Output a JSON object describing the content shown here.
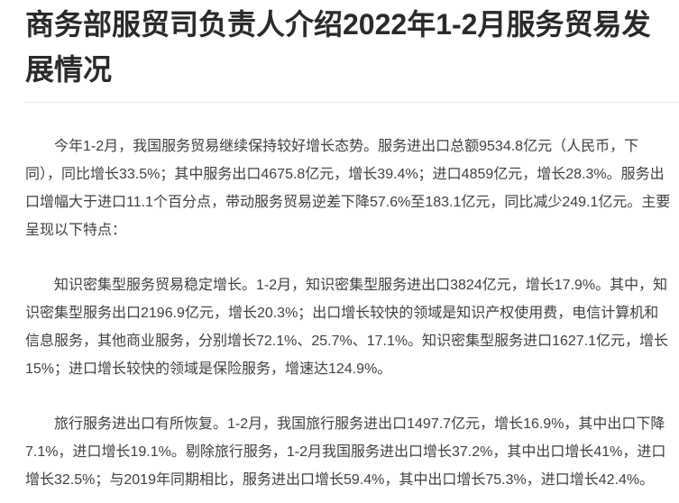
{
  "article": {
    "title": "商务部服贸司负责人介绍2022年1-2月服务贸易发展情况",
    "paragraphs": {
      "0": "今年1-2月，我国服务贸易继续保持较好增长态势。服务进出口总额9534.8亿元（人民币，下同），同比增长33.5%；其中服务出口4675.8亿元，增长39.4%；进口4859亿元，增长28.3%。服务出口增幅大于进口11.1个百分点，带动服务贸易逆差下降57.6%至183.1亿元，同比减少249.1亿元。主要呈现以下特点：",
      "1": "知识密集型服务贸易稳定增长。1-2月，知识密集型服务进出口3824亿元，增长17.9%。其中，知识密集型服务出口2196.9亿元，增长20.3%；出口增长较快的领域是知识产权使用费，电信计算机和信息服务，其他商业服务，分别增长72.1%、25.7%、17.1%。知识密集型服务进口1627.1亿元，增长15%；进口增长较快的领域是保险服务，增速达124.9%。",
      "2": "旅行服务进出口有所恢复。1-2月，我国旅行服务进出口1497.7亿元，增长16.9%，其中出口下降7.1%，进口增长19.1%。剔除旅行服务，1-2月我国服务进出口增长37.2%，其中出口增长41%，进口增长32.5%；与2019年同期相比，服务进出口增长59.4%，其中出口增长75.3%，进口增长42.4%。"
    },
    "colors": {
      "title_text": "#2a2a2a",
      "body_text": "#404040",
      "divider": "#e8e8e8",
      "background": "#ffffff"
    }
  }
}
